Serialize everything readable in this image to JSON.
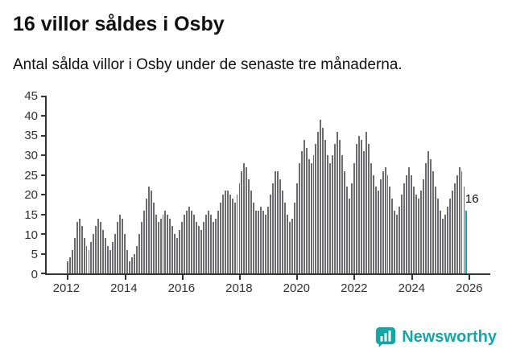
{
  "title": "16 villor såldes i Osby",
  "subtitle": "Antal sålda villor i Osby under de senaste tre månaderna.",
  "annotation": {
    "label": "16"
  },
  "branding": {
    "name": "Newsworthy"
  },
  "colors": {
    "bar": "#6B6B70",
    "accent": "#12A5A5",
    "axis": "#333333",
    "text": "#111111"
  },
  "chart_data": {
    "type": "bar",
    "title": "16 villor såldes i Osby",
    "subtitle": "Antal sålda villor i Osby under de senaste tre månaderna.",
    "xlabel": "",
    "ylabel": "",
    "freq": "monthly",
    "start_year": 2012,
    "ylim": [
      0,
      45
    ],
    "yticks": [
      0,
      5,
      10,
      15,
      20,
      25,
      30,
      35,
      40,
      45
    ],
    "xticks": [
      2012,
      2014,
      2016,
      2018,
      2020,
      2022,
      2024,
      2026
    ],
    "grid": false,
    "legend": false,
    "highlight_last": true,
    "last_value": 16,
    "values": [
      3,
      4,
      6,
      9,
      13,
      14,
      12,
      9,
      7,
      6,
      8,
      10,
      12,
      14,
      13,
      11,
      9,
      7,
      6,
      8,
      10,
      13,
      15,
      14,
      10,
      6,
      3,
      4,
      5,
      7,
      10,
      13,
      16,
      19,
      22,
      21,
      18,
      15,
      13,
      14,
      15,
      16,
      15,
      14,
      12,
      10,
      9,
      11,
      13,
      15,
      16,
      17,
      16,
      15,
      13,
      12,
      11,
      13,
      15,
      16,
      15,
      13,
      14,
      16,
      18,
      20,
      21,
      21,
      20,
      19,
      18,
      20,
      23,
      26,
      28,
      27,
      24,
      21,
      18,
      16,
      16,
      17,
      16,
      15,
      17,
      20,
      23,
      26,
      26,
      24,
      21,
      18,
      15,
      13,
      14,
      18,
      23,
      28,
      31,
      34,
      32,
      29,
      28,
      30,
      33,
      36,
      39,
      37,
      34,
      30,
      28,
      30,
      33,
      36,
      34,
      30,
      26,
      22,
      19,
      23,
      28,
      33,
      35,
      34,
      31,
      36,
      33,
      28,
      25,
      22,
      21,
      24,
      26,
      27,
      25,
      22,
      19,
      16,
      15,
      17,
      20,
      23,
      25,
      27,
      25,
      22,
      20,
      19,
      21,
      24,
      28,
      31,
      29,
      26,
      22,
      19,
      16,
      14,
      15,
      17,
      19,
      21,
      23,
      25,
      27,
      26,
      22,
      16
    ]
  }
}
